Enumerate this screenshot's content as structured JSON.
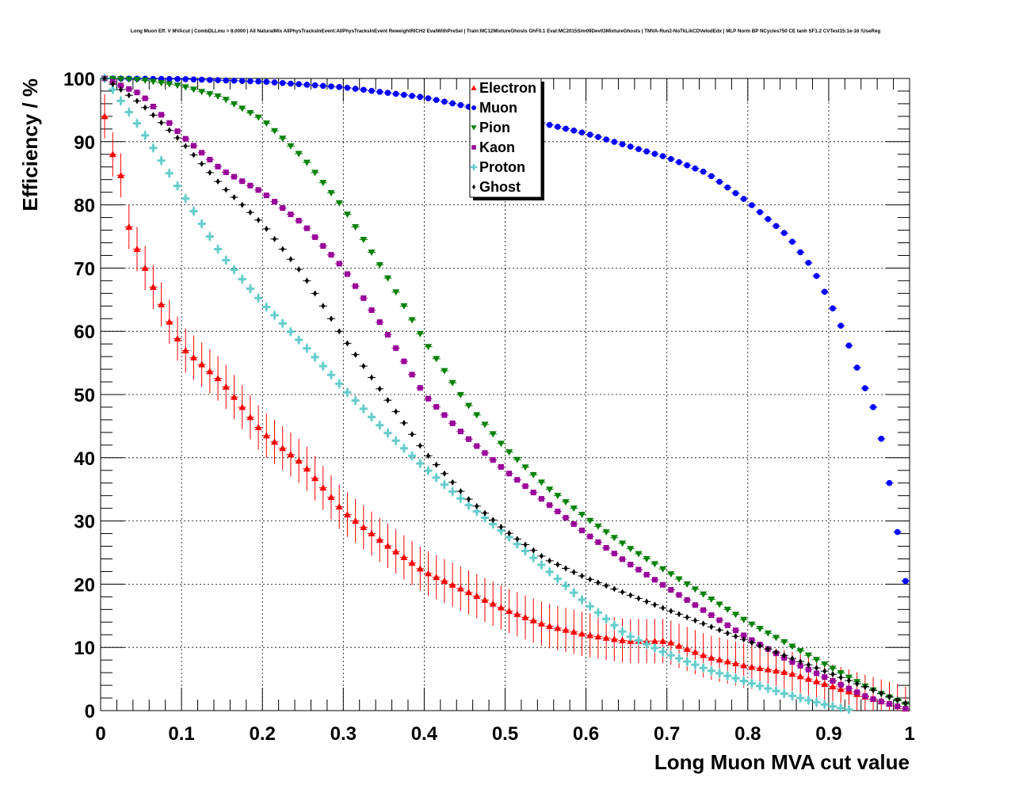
{
  "chart_data": {
    "type": "scatter",
    "title": "Long Muon Eff. V MVAcut | CombDLLmu > 8.0000 | All NaturalMix AllPhysTracksInEvent:AllPhysTracksInEvent ReweightRICH2 EvalWithPreSel | Train:MC12MixtureGhosts GhF0.1 Eval:MC2015Sim09Dev03MixtureGhosts | TMVA-Run2-NoTkLikCDVelodEdx | MLP Norm BP NCycles750 CE tanh SF1.2 CVTest15:1e-16 !UseReg",
    "xlabel": "Long Muon MVA cut value",
    "ylabel": "Efficiency / %",
    "xlim": [
      0,
      1
    ],
    "ylim": [
      0,
      100
    ],
    "x_ticks": [
      0,
      0.1,
      0.2,
      0.3,
      0.4,
      0.5,
      0.6,
      0.7,
      0.8,
      0.9,
      1
    ],
    "x_tick_labels": [
      "0",
      "0.1",
      "0.2",
      "0.3",
      "0.4",
      "0.5",
      "0.6",
      "0.7",
      "0.8",
      "0.9",
      "1"
    ],
    "y_ticks": [
      0,
      10,
      20,
      30,
      40,
      50,
      60,
      70,
      80,
      90,
      100
    ],
    "y_tick_labels": [
      "0",
      "10",
      "20",
      "30",
      "40",
      "50",
      "60",
      "70",
      "80",
      "90",
      "100"
    ],
    "grid": true,
    "legend_position": "top-center",
    "x_step": 0.01,
    "series": [
      {
        "name": "Electron",
        "color": "#ff0000",
        "marker": "triangle-up",
        "yerr_const": 3.5,
        "anchors": [
          [
            0.005,
            94
          ],
          [
            0.015,
            88
          ],
          [
            0.027,
            84
          ],
          [
            0.035,
            76.5
          ],
          [
            0.045,
            73
          ],
          [
            0.065,
            67
          ],
          [
            0.085,
            61.5
          ],
          [
            0.1,
            57.5
          ],
          [
            0.15,
            52
          ],
          [
            0.2,
            44
          ],
          [
            0.25,
            39
          ],
          [
            0.3,
            31.5
          ],
          [
            0.35,
            26.5
          ],
          [
            0.4,
            22
          ],
          [
            0.45,
            19
          ],
          [
            0.5,
            16
          ],
          [
            0.55,
            13.5
          ],
          [
            0.6,
            12
          ],
          [
            0.65,
            11
          ],
          [
            0.7,
            11
          ],
          [
            0.75,
            8.5
          ],
          [
            0.8,
            7
          ],
          [
            0.85,
            6
          ],
          [
            0.9,
            4
          ],
          [
            0.95,
            2
          ],
          [
            0.995,
            0.3
          ]
        ]
      },
      {
        "name": "Muon",
        "color": "#0000ff",
        "marker": "circle",
        "yerr_const": 0,
        "anchors": [
          [
            0.005,
            100
          ],
          [
            0.1,
            99.9
          ],
          [
            0.2,
            99.5
          ],
          [
            0.3,
            98.6
          ],
          [
            0.4,
            97
          ],
          [
            0.5,
            94.3
          ],
          [
            0.6,
            91.3
          ],
          [
            0.7,
            87.5
          ],
          [
            0.75,
            85
          ],
          [
            0.8,
            80.5
          ],
          [
            0.85,
            75
          ],
          [
            0.88,
            70
          ],
          [
            0.9,
            65
          ],
          [
            0.92,
            59.5
          ],
          [
            0.94,
            52.5
          ],
          [
            0.955,
            48
          ],
          [
            0.965,
            43
          ],
          [
            0.975,
            36
          ],
          [
            0.995,
            20.5
          ]
        ]
      },
      {
        "name": "Pion",
        "color": "#008000",
        "marker": "triangle-down",
        "yerr_const": 0,
        "anchors": [
          [
            0.005,
            100
          ],
          [
            0.05,
            99.8
          ],
          [
            0.1,
            98.8
          ],
          [
            0.15,
            97
          ],
          [
            0.2,
            93.5
          ],
          [
            0.25,
            87.5
          ],
          [
            0.3,
            79.5
          ],
          [
            0.35,
            69.5
          ],
          [
            0.4,
            58.5
          ],
          [
            0.45,
            49
          ],
          [
            0.5,
            41.5
          ],
          [
            0.55,
            35.5
          ],
          [
            0.6,
            30.5
          ],
          [
            0.65,
            26
          ],
          [
            0.7,
            22
          ],
          [
            0.75,
            18
          ],
          [
            0.8,
            14
          ],
          [
            0.85,
            10.5
          ],
          [
            0.9,
            7
          ],
          [
            0.95,
            3.5
          ],
          [
            0.995,
            1
          ]
        ]
      },
      {
        "name": "Kaon",
        "color": "#990099",
        "marker": "square",
        "yerr_const": 0,
        "anchors": [
          [
            0.005,
            100
          ],
          [
            0.05,
            97.5
          ],
          [
            0.1,
            91
          ],
          [
            0.15,
            85.5
          ],
          [
            0.2,
            82
          ],
          [
            0.25,
            77
          ],
          [
            0.3,
            70
          ],
          [
            0.35,
            60.5
          ],
          [
            0.4,
            50
          ],
          [
            0.45,
            43.5
          ],
          [
            0.5,
            38
          ],
          [
            0.55,
            33
          ],
          [
            0.6,
            28
          ],
          [
            0.65,
            23.5
          ],
          [
            0.7,
            19.5
          ],
          [
            0.75,
            15.5
          ],
          [
            0.8,
            11.5
          ],
          [
            0.85,
            8
          ],
          [
            0.9,
            5
          ],
          [
            0.95,
            2
          ],
          [
            0.995,
            0.3
          ]
        ]
      },
      {
        "name": "Proton",
        "color": "#66cccc",
        "marker": "cross",
        "yerr_const": 0.8,
        "anchors": [
          [
            0.005,
            100
          ],
          [
            0.05,
            92
          ],
          [
            0.1,
            82
          ],
          [
            0.15,
            72
          ],
          [
            0.2,
            64.5
          ],
          [
            0.25,
            58
          ],
          [
            0.3,
            51
          ],
          [
            0.35,
            44.5
          ],
          [
            0.4,
            38.5
          ],
          [
            0.45,
            33
          ],
          [
            0.5,
            28
          ],
          [
            0.55,
            22.5
          ],
          [
            0.6,
            17
          ],
          [
            0.65,
            12
          ],
          [
            0.7,
            9
          ],
          [
            0.75,
            6.5
          ],
          [
            0.8,
            4.5
          ],
          [
            0.85,
            2.5
          ],
          [
            0.9,
            0.8
          ],
          [
            0.93,
            0
          ]
        ]
      },
      {
        "name": "Ghost",
        "color": "#000000",
        "marker": "diamond",
        "yerr_const": 0,
        "anchors": [
          [
            0.005,
            100
          ],
          [
            0.05,
            96
          ],
          [
            0.1,
            90
          ],
          [
            0.15,
            83
          ],
          [
            0.2,
            77
          ],
          [
            0.25,
            69
          ],
          [
            0.3,
            59
          ],
          [
            0.35,
            50
          ],
          [
            0.4,
            41
          ],
          [
            0.45,
            34
          ],
          [
            0.5,
            28.5
          ],
          [
            0.55,
            24
          ],
          [
            0.6,
            21
          ],
          [
            0.65,
            18.5
          ],
          [
            0.7,
            16
          ],
          [
            0.75,
            13.5
          ],
          [
            0.8,
            11
          ],
          [
            0.85,
            8.5
          ],
          [
            0.9,
            6
          ],
          [
            0.95,
            3.5
          ],
          [
            0.995,
            1.2
          ]
        ]
      }
    ]
  }
}
